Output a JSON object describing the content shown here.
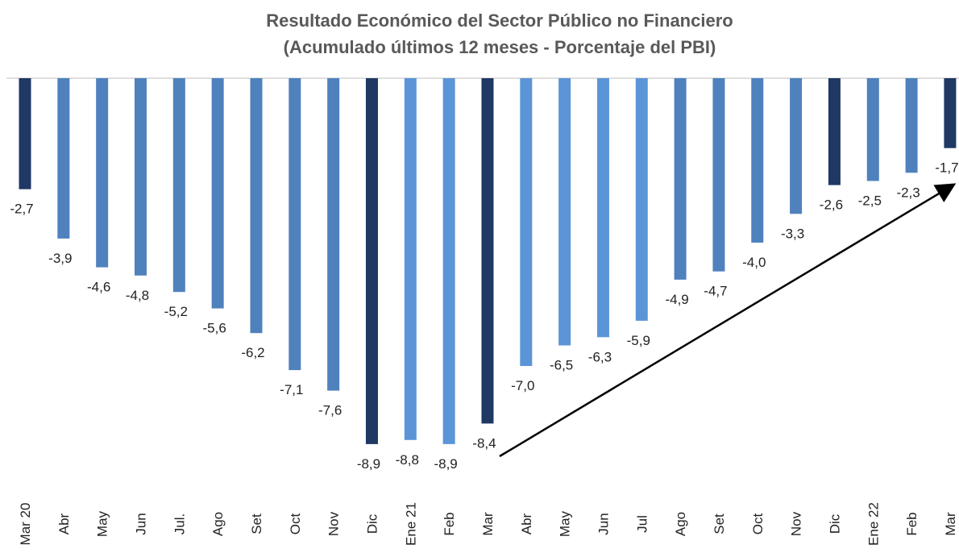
{
  "chart_data": {
    "type": "bar",
    "title": "Resultado Económico del Sector Público no Financiero",
    "subtitle": "(Acumulado últimos 12 meses - Porcentaje del PBI)",
    "categories": [
      "Mar 20",
      "Abr",
      "May",
      "Jun",
      "Jul.",
      "Ago",
      "Set",
      "Oct",
      "Nov",
      "Dic",
      "Ene 21",
      "Feb",
      "Mar",
      "Abr",
      "May",
      "Jun",
      "Jul",
      "Ago",
      "Set",
      "Oct",
      "Nov",
      "Dic",
      "Ene 22",
      "Feb",
      "Mar"
    ],
    "values": [
      -2.7,
      -3.9,
      -4.6,
      -4.8,
      -5.2,
      -5.6,
      -6.2,
      -7.1,
      -7.6,
      -8.9,
      -8.8,
      -8.9,
      -8.4,
      -7.0,
      -6.5,
      -6.3,
      -5.9,
      -4.9,
      -4.7,
      -4.0,
      -3.3,
      -2.6,
      -2.5,
      -2.3,
      -1.7
    ],
    "value_labels": [
      "-2,7",
      "-3,9",
      "-4,6",
      "-4,8",
      "-5,2",
      "-5,6",
      "-6,2",
      "-7,1",
      "-7,6",
      "-8,9",
      "-8,8",
      "-8,9",
      "-8,4",
      "-7,0",
      "-6,5",
      "-6,3",
      "-5,9",
      "-4,9",
      "-4,7",
      "-4,0",
      "-3,3",
      "-2,6",
      "-2,5",
      "-2,3",
      "-1,7"
    ],
    "colors": [
      "#1f3864",
      "#4f81bd",
      "#4f81bd",
      "#4f81bd",
      "#4f81bd",
      "#4f81bd",
      "#4f81bd",
      "#4f81bd",
      "#4f81bd",
      "#1f3864",
      "#5b95d8",
      "#5b95d8",
      "#1f3864",
      "#5b95d8",
      "#5b95d8",
      "#5b95d8",
      "#5b95d8",
      "#4f81bd",
      "#4f81bd",
      "#4f81bd",
      "#4f81bd",
      "#1f3864",
      "#4f81bd",
      "#4f81bd",
      "#1f3864"
    ],
    "ylim": [
      -10,
      0
    ]
  }
}
